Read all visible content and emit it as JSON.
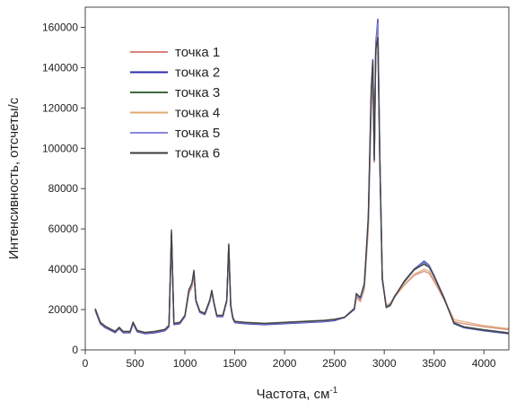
{
  "chart_data": {
    "type": "line",
    "title": "",
    "xlabel": "Частота, см",
    "xlabel_sup": "-1",
    "ylabel": "Интенсивность, отсчеты/с",
    "xlim": [
      0,
      4250
    ],
    "ylim": [
      0,
      170000
    ],
    "x_ticks": [
      0,
      500,
      1000,
      1500,
      2000,
      2500,
      3000,
      3500,
      4000
    ],
    "y_ticks": [
      0,
      20000,
      40000,
      60000,
      80000,
      100000,
      120000,
      140000,
      160000
    ],
    "grid": false,
    "legend_position": "top-left",
    "x": [
      100,
      150,
      200,
      300,
      340,
      380,
      450,
      480,
      520,
      600,
      700,
      800,
      840,
      865,
      890,
      950,
      1000,
      1040,
      1070,
      1090,
      1110,
      1150,
      1200,
      1250,
      1270,
      1290,
      1320,
      1380,
      1420,
      1440,
      1460,
      1480,
      1500,
      1600,
      1800,
      2000,
      2200,
      2400,
      2500,
      2600,
      2700,
      2720,
      2760,
      2800,
      2840,
      2870,
      2885,
      2900,
      2915,
      2935,
      2955,
      2980,
      3020,
      3060,
      3100,
      3200,
      3300,
      3400,
      3450,
      3500,
      3600,
      3700,
      3800,
      4000,
      4250
    ],
    "series": [
      {
        "name": "точка 1",
        "color": "#d9827a",
        "values": [
          20000,
          13500,
          11500,
          9000,
          11000,
          9000,
          9000,
          13500,
          9500,
          8500,
          9000,
          10000,
          12000,
          56000,
          13000,
          13500,
          17000,
          28000,
          31000,
          37000,
          24000,
          19000,
          18000,
          24000,
          28500,
          23000,
          17000,
          17000,
          24000,
          50000,
          22000,
          16000,
          14000,
          13500,
          13000,
          13500,
          14000,
          14500,
          15000,
          16000,
          20000,
          26000,
          24000,
          30000,
          60000,
          120000,
          138000,
          93000,
          145000,
          158000,
          95000,
          35000,
          22000,
          23000,
          26000,
          32000,
          37000,
          39000,
          38000,
          34000,
          25000,
          14000,
          13000,
          11500,
          10000
        ]
      },
      {
        "name": "точка 2",
        "color": "#2b2baa",
        "values": [
          19500,
          13000,
          11000,
          8500,
          10500,
          8500,
          8500,
          13000,
          9000,
          8000,
          8500,
          9500,
          11500,
          57000,
          12500,
          13000,
          16500,
          29000,
          32000,
          38000,
          24000,
          18500,
          17500,
          24000,
          29000,
          23000,
          16500,
          16500,
          24000,
          51000,
          21500,
          15500,
          13500,
          13000,
          12500,
          13000,
          13500,
          14000,
          14500,
          16000,
          20000,
          27000,
          25000,
          32000,
          65000,
          128000,
          144000,
          96000,
          152000,
          164000,
          98000,
          36000,
          21000,
          22000,
          26000,
          34000,
          40000,
          44000,
          42000,
          37000,
          26000,
          13000,
          11000,
          9500,
          8000
        ]
      },
      {
        "name": "точка 3",
        "color": "#3d6b3d",
        "values": [
          20500,
          13800,
          11800,
          9200,
          11200,
          9200,
          9200,
          13800,
          9700,
          8700,
          9200,
          10200,
          12200,
          58000,
          13200,
          13700,
          17200,
          29500,
          32500,
          38500,
          24500,
          19200,
          18200,
          24500,
          29200,
          23500,
          17200,
          17200,
          24500,
          52000,
          22200,
          16200,
          14200,
          13700,
          13200,
          13700,
          14200,
          14700,
          15200,
          16200,
          20500,
          27500,
          25500,
          31500,
          63000,
          124000,
          141000,
          95000,
          148000,
          160000,
          96000,
          35500,
          21500,
          22500,
          26500,
          33500,
          39500,
          43000,
          41500,
          36500,
          26000,
          13500,
          11500,
          10000,
          8500
        ]
      },
      {
        "name": "точка 4",
        "color": "#e0a870",
        "values": [
          20000,
          13600,
          11600,
          9100,
          11100,
          9100,
          9100,
          13600,
          9600,
          8600,
          9100,
          10100,
          12100,
          55000,
          13100,
          13600,
          17100,
          28500,
          31500,
          37500,
          24200,
          19100,
          18100,
          24200,
          28800,
          23200,
          17100,
          17100,
          24200,
          50500,
          22100,
          16100,
          14100,
          13600,
          13100,
          13600,
          14100,
          14600,
          15100,
          16100,
          20200,
          26500,
          24500,
          30500,
          61000,
          121000,
          139000,
          94000,
          146000,
          157000,
          94500,
          35200,
          22200,
          23200,
          26200,
          32200,
          37500,
          40000,
          39000,
          35000,
          25500,
          15000,
          14000,
          12000,
          10500
        ]
      },
      {
        "name": "точка 5",
        "color": "#8888dd",
        "values": [
          19800,
          13300,
          11300,
          8800,
          10800,
          8800,
          8800,
          13300,
          9300,
          8300,
          8800,
          9800,
          11800,
          57500,
          12800,
          13300,
          16800,
          29200,
          32200,
          38200,
          24200,
          18800,
          17800,
          24200,
          29100,
          23200,
          16800,
          16800,
          24200,
          51500,
          21800,
          15800,
          13800,
          13300,
          12800,
          13300,
          13800,
          14300,
          14800,
          16000,
          20200,
          27200,
          25200,
          31800,
          64000,
          126000,
          142500,
          95500,
          150000,
          162000,
          97000,
          35800,
          21200,
          22200,
          26200,
          33800,
          39800,
          43500,
          41800,
          36800,
          25800,
          13200,
          11200,
          9800,
          8200
        ]
      },
      {
        "name": "точка 6",
        "color": "#3a3a3a",
        "values": [
          20300,
          13700,
          11700,
          9100,
          11100,
          9100,
          9100,
          13700,
          9600,
          8600,
          9100,
          10100,
          12100,
          59500,
          13100,
          13600,
          17100,
          29800,
          33000,
          39500,
          24800,
          19100,
          18100,
          24800,
          29600,
          23800,
          17100,
          17100,
          24800,
          52500,
          22100,
          16100,
          14100,
          13600,
          13100,
          13600,
          14100,
          14600,
          15100,
          16100,
          20600,
          28000,
          26000,
          33000,
          66000,
          130000,
          143000,
          94000,
          149000,
          155000,
          95000,
          35000,
          21000,
          22000,
          26000,
          34000,
          40000,
          42500,
          41000,
          36500,
          25500,
          13300,
          11300,
          9900,
          8300
        ]
      }
    ]
  }
}
